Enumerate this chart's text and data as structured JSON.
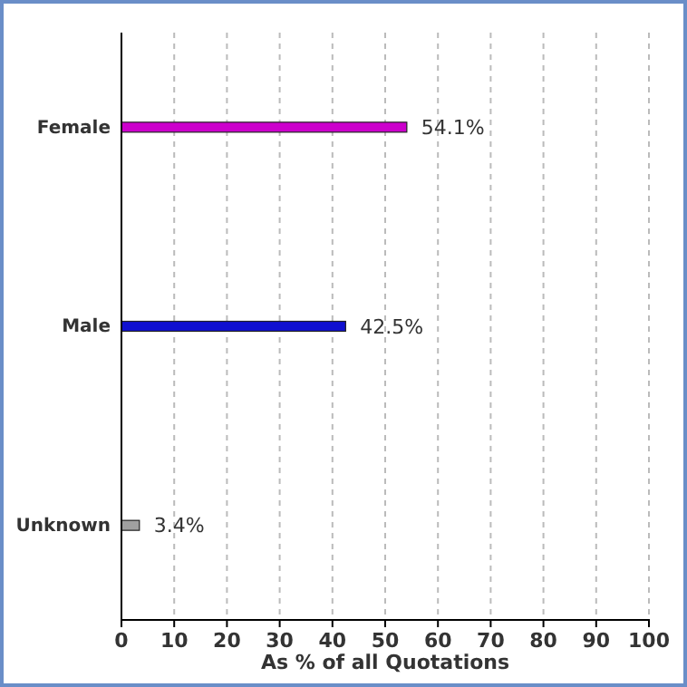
{
  "chart_data": {
    "type": "bar",
    "orientation": "horizontal",
    "categories": [
      "Female",
      "Male",
      "Unknown"
    ],
    "values": [
      54.1,
      42.5,
      3.4
    ],
    "colors": [
      "#cc00cc",
      "#1010d0",
      "#a0a0a0"
    ],
    "value_labels": [
      "54.1%",
      "42.5%",
      "3.4%"
    ],
    "xlabel": "As % of all Quotations",
    "xlim": [
      0,
      100
    ],
    "xticks": [
      0,
      10,
      20,
      30,
      40,
      50,
      60,
      70,
      80,
      90,
      100
    ],
    "grid": "x"
  }
}
